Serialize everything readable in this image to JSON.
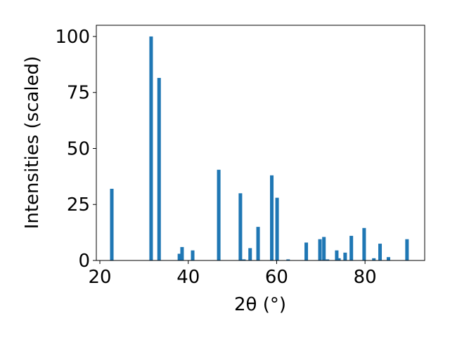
{
  "chart_data": {
    "type": "bar",
    "xlabel": "2θ (°)",
    "ylabel": "Intensities (scaled)",
    "x": [
      22.7,
      31.6,
      33.4,
      38.0,
      38.6,
      41.0,
      46.9,
      51.8,
      52.6,
      54.0,
      55.8,
      58.9,
      60.1,
      62.6,
      66.7,
      69.8,
      70.7,
      71.5,
      73.6,
      74.1,
      75.5,
      76.9,
      79.8,
      82.0,
      83.4,
      85.3,
      89.5
    ],
    "values": [
      32,
      100,
      81.5,
      3,
      6,
      4.5,
      40.5,
      30,
      0.5,
      5.5,
      15,
      38,
      28,
      0.5,
      8,
      9.5,
      10.5,
      0.5,
      4.5,
      1,
      3.5,
      11,
      14.5,
      1,
      7.5,
      1.5,
      9.5
    ],
    "color": "#1f77b4",
    "xlim": [
      19.2,
      93.5
    ],
    "xticks": [
      20,
      40,
      60,
      80
    ],
    "ylim": [
      0,
      105
    ],
    "yticks": [
      0,
      25,
      50,
      75,
      100
    ]
  }
}
